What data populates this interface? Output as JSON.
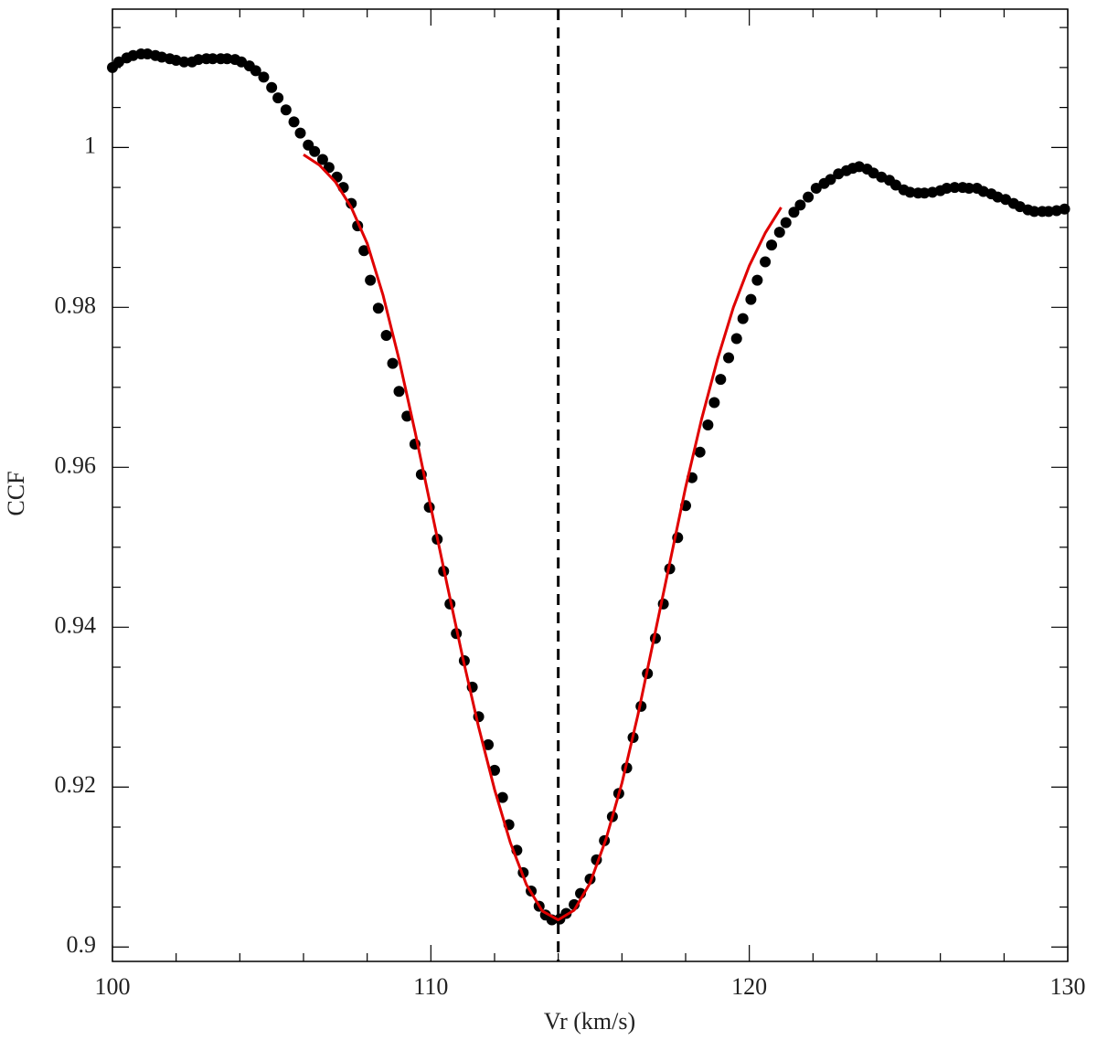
{
  "chart_data": {
    "type": "scatter",
    "xlabel": "Vr (km/s)",
    "ylabel": "CCF",
    "xlim": [
      100,
      130
    ],
    "ylim": [
      0.8982,
      1.0173
    ],
    "xticks": [
      100,
      110,
      120,
      130
    ],
    "yticks": [
      0.9,
      0.92,
      0.94,
      0.96,
      0.98,
      1
    ],
    "xminorticks": [
      102,
      104,
      106,
      108,
      112,
      114,
      116,
      118,
      122,
      124,
      126,
      128
    ],
    "yminorticks": [
      0.905,
      0.91,
      0.915,
      0.925,
      0.93,
      0.935,
      0.945,
      0.95,
      0.955,
      0.965,
      0.97,
      0.975,
      0.985,
      0.99,
      0.995,
      1.005,
      1.01,
      1.015
    ],
    "vline": {
      "value": 114,
      "color": "#000000",
      "dashed": true
    },
    "series": [
      {
        "type": "scatter",
        "color": "#000000",
        "x": [
          100.0,
          100.2,
          100.45,
          100.65,
          100.9,
          101.1,
          101.35,
          101.55,
          101.8,
          102.0,
          102.25,
          102.5,
          102.7,
          102.95,
          103.15,
          103.4,
          103.6,
          103.85,
          104.05,
          104.3,
          104.5,
          104.75,
          105.0,
          105.2,
          105.45,
          105.7,
          105.9,
          106.15,
          106.35,
          106.6,
          106.8,
          107.05,
          107.25,
          107.5,
          107.7,
          107.9,
          108.1,
          108.35,
          108.6,
          108.8,
          109.0,
          109.25,
          109.5,
          109.7,
          109.95,
          110.2,
          110.4,
          110.6,
          110.8,
          111.05,
          111.3,
          111.5,
          111.8,
          112.0,
          112.25,
          112.45,
          112.7,
          112.9,
          113.15,
          113.4,
          113.6,
          113.8,
          114.05,
          114.25,
          114.5,
          114.7,
          115.0,
          115.2,
          115.45,
          115.7,
          115.9,
          116.15,
          116.35,
          116.6,
          116.8,
          117.05,
          117.3,
          117.5,
          117.75,
          118.0,
          118.2,
          118.45,
          118.7,
          118.9,
          119.1,
          119.35,
          119.6,
          119.8,
          120.05,
          120.25,
          120.5,
          120.7,
          120.95,
          121.15,
          121.4,
          121.6,
          121.85,
          122.1,
          122.35,
          122.55,
          122.8,
          123.05,
          123.25,
          123.45,
          123.7,
          123.9,
          124.15,
          124.4,
          124.6,
          124.85,
          125.05,
          125.3,
          125.5,
          125.75,
          126.0,
          126.2,
          126.45,
          126.7,
          126.9,
          127.15,
          127.35,
          127.6,
          127.8,
          128.05,
          128.3,
          128.5,
          128.75,
          128.95,
          129.2,
          129.4,
          129.65,
          129.9
        ],
        "values": [
          1.01,
          1.0107,
          1.0112,
          1.0115,
          1.0117,
          1.0117,
          1.0115,
          1.0113,
          1.0111,
          1.0109,
          1.0107,
          1.0107,
          1.011,
          1.0111,
          1.0111,
          1.0111,
          1.0111,
          1.011,
          1.0107,
          1.0102,
          1.0096,
          1.0088,
          1.0075,
          1.0062,
          1.0047,
          1.0032,
          1.0018,
          1.0003,
          0.9995,
          0.9985,
          0.9975,
          0.9963,
          0.995,
          0.993,
          0.9902,
          0.9871,
          0.9834,
          0.9799,
          0.9765,
          0.973,
          0.9695,
          0.9664,
          0.9629,
          0.9591,
          0.955,
          0.951,
          0.947,
          0.9429,
          0.9392,
          0.9358,
          0.9325,
          0.9288,
          0.9253,
          0.9221,
          0.9187,
          0.9153,
          0.9121,
          0.9093,
          0.907,
          0.9051,
          0.904,
          0.9034,
          0.9035,
          0.9042,
          0.9053,
          0.9067,
          0.9085,
          0.9109,
          0.9133,
          0.9163,
          0.9192,
          0.9224,
          0.9262,
          0.9301,
          0.9342,
          0.9386,
          0.9429,
          0.9473,
          0.9512,
          0.9552,
          0.9587,
          0.9619,
          0.9653,
          0.9681,
          0.971,
          0.9737,
          0.9761,
          0.9786,
          0.981,
          0.9834,
          0.9857,
          0.9878,
          0.9894,
          0.9906,
          0.9919,
          0.9928,
          0.9938,
          0.9949,
          0.9955,
          0.996,
          0.9967,
          0.9971,
          0.9974,
          0.9976,
          0.9973,
          0.9968,
          0.9963,
          0.9959,
          0.9953,
          0.9947,
          0.9944,
          0.9943,
          0.9943,
          0.9944,
          0.9946,
          0.9949,
          0.995,
          0.995,
          0.9949,
          0.9949,
          0.9945,
          0.9942,
          0.9938,
          0.9935,
          0.993,
          0.9926,
          0.9922,
          0.992,
          0.992,
          0.992,
          0.9921,
          0.9923
        ]
      },
      {
        "type": "line",
        "color": "#e00000",
        "x": [
          106,
          106.5,
          107,
          107.5,
          108,
          108.5,
          109,
          109.5,
          110,
          110.5,
          111,
          111.5,
          112,
          112.5,
          113,
          113.5,
          114,
          114.5,
          115,
          115.5,
          116,
          116.5,
          117,
          117.5,
          118,
          118.5,
          119,
          119.5,
          120,
          120.5,
          121
        ],
        "values": [
          0.9991,
          0.9978,
          0.9957,
          0.9925,
          0.988,
          0.9815,
          0.9735,
          0.9645,
          0.955,
          0.9455,
          0.9362,
          0.9275,
          0.9197,
          0.913,
          0.9078,
          0.9045,
          0.9034,
          0.9046,
          0.908,
          0.9135,
          0.9205,
          0.929,
          0.9385,
          0.948,
          0.9575,
          0.966,
          0.9735,
          0.98,
          0.9852,
          0.9893,
          0.9925
        ]
      }
    ]
  }
}
